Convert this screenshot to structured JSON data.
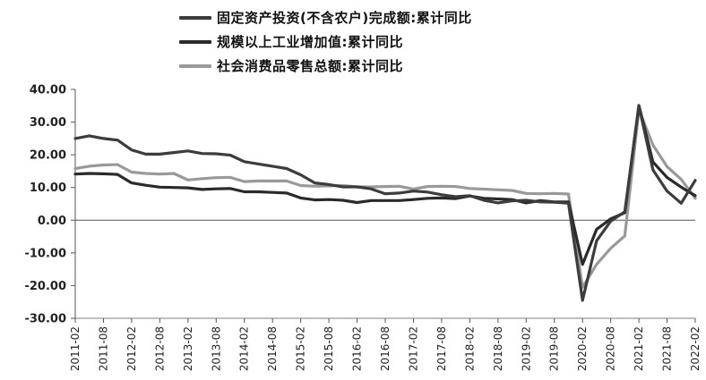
{
  "chart_data": {
    "type": "line",
    "title": "",
    "xlabel": "",
    "ylabel": "",
    "ylim": [
      -30,
      40
    ],
    "y_ticks": [
      "40.00",
      "30.00",
      "20.00",
      "10.00",
      "0.00",
      "-10.00",
      "-20.00",
      "-30.00"
    ],
    "x_ticks": [
      "2011-02",
      "2011-08",
      "2012-02",
      "2012-08",
      "2013-02",
      "2013-08",
      "2014-02",
      "2014-08",
      "2015-02",
      "2015-08",
      "2016-02",
      "2016-08",
      "2017-02",
      "2017-08",
      "2018-02",
      "2018-08",
      "2019-02",
      "2019-08",
      "2020-02",
      "2020-08",
      "2021-02",
      "2021-08",
      "2022-02"
    ],
    "legend_position": "top-center",
    "grid": false,
    "x_points": [
      "2011-02",
      "2011-05",
      "2011-08",
      "2011-11",
      "2012-02",
      "2012-05",
      "2012-08",
      "2012-11",
      "2013-02",
      "2013-05",
      "2013-08",
      "2013-11",
      "2014-02",
      "2014-05",
      "2014-08",
      "2014-11",
      "2015-02",
      "2015-05",
      "2015-08",
      "2015-11",
      "2016-02",
      "2016-05",
      "2016-08",
      "2016-11",
      "2017-02",
      "2017-05",
      "2017-08",
      "2017-11",
      "2018-02",
      "2018-05",
      "2018-08",
      "2018-11",
      "2019-02",
      "2019-05",
      "2019-08",
      "2019-11",
      "2020-02",
      "2020-05",
      "2020-08",
      "2020-11",
      "2021-02",
      "2021-05",
      "2021-08",
      "2021-11",
      "2022-02"
    ],
    "series": [
      {
        "name": "固定资产投资(不含农户)完成额:累计同比",
        "color": "#3c3c3c",
        "values": [
          25.0,
          25.8,
          25.0,
          24.5,
          21.5,
          20.2,
          20.2,
          20.7,
          21.2,
          20.4,
          20.3,
          19.9,
          17.9,
          17.2,
          16.5,
          15.8,
          13.9,
          11.4,
          10.9,
          10.2,
          10.2,
          9.6,
          8.1,
          8.3,
          8.9,
          8.6,
          7.8,
          7.2,
          7.5,
          6.1,
          5.3,
          5.9,
          6.1,
          5.6,
          5.5,
          5.2,
          -24.5,
          -6.3,
          -0.3,
          2.6,
          35.0,
          15.4,
          8.9,
          5.2,
          12.2
        ]
      },
      {
        "name": "规模以上工业增加值:累计同比",
        "color": "#2a2a2a",
        "values": [
          14.1,
          14.3,
          14.2,
          14.0,
          11.4,
          10.7,
          10.1,
          10.0,
          9.9,
          9.4,
          9.6,
          9.7,
          8.7,
          8.7,
          8.5,
          8.3,
          6.8,
          6.2,
          6.3,
          6.1,
          5.4,
          6.0,
          6.0,
          6.0,
          6.3,
          6.7,
          6.8,
          6.6,
          7.4,
          6.7,
          6.5,
          6.3,
          5.3,
          6.0,
          5.6,
          5.6,
          -13.5,
          -2.8,
          0.4,
          2.3,
          35.1,
          17.8,
          13.1,
          10.1,
          7.5
        ]
      },
      {
        "name": "社会消费品零售总额:累计同比",
        "color": "#999999",
        "values": [
          15.8,
          16.5,
          16.9,
          17.0,
          14.7,
          14.3,
          14.1,
          14.3,
          12.3,
          12.7,
          13.0,
          13.1,
          11.8,
          12.0,
          12.0,
          12.0,
          10.6,
          10.4,
          10.5,
          10.6,
          10.2,
          10.2,
          10.3,
          10.4,
          9.5,
          10.3,
          10.4,
          10.3,
          9.7,
          9.5,
          9.3,
          9.1,
          8.2,
          8.1,
          8.2,
          8.0,
          -20.5,
          -13.5,
          -8.6,
          -4.8,
          33.8,
          23.0,
          16.4,
          12.5,
          6.7
        ]
      }
    ]
  }
}
